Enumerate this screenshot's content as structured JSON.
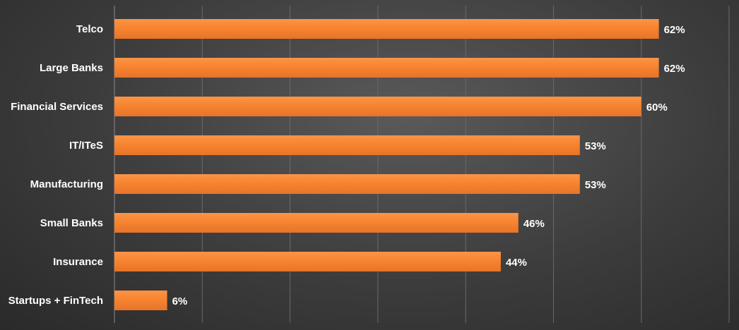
{
  "chart_data": {
    "type": "bar",
    "orientation": "horizontal",
    "categories": [
      "Telco",
      "Large Banks",
      "Financial Services",
      "IT/ITeS",
      "Manufacturing",
      "Small Banks",
      "Insurance",
      "Startups + FinTech"
    ],
    "values": [
      62,
      62,
      60,
      53,
      53,
      46,
      44,
      6
    ],
    "value_labels": [
      "62%",
      "62%",
      "60%",
      "53%",
      "53%",
      "46%",
      "44%",
      "6%"
    ],
    "title": "",
    "xlabel": "",
    "ylabel": "",
    "xlim": [
      0,
      70
    ],
    "grid": true,
    "legend": "none",
    "colors": {
      "bar": "#f7842f",
      "bar_highlight": "#fb9a4e",
      "text": "#ffffff",
      "background": "#3c3c3c",
      "grid": "#6a6a6a"
    }
  }
}
